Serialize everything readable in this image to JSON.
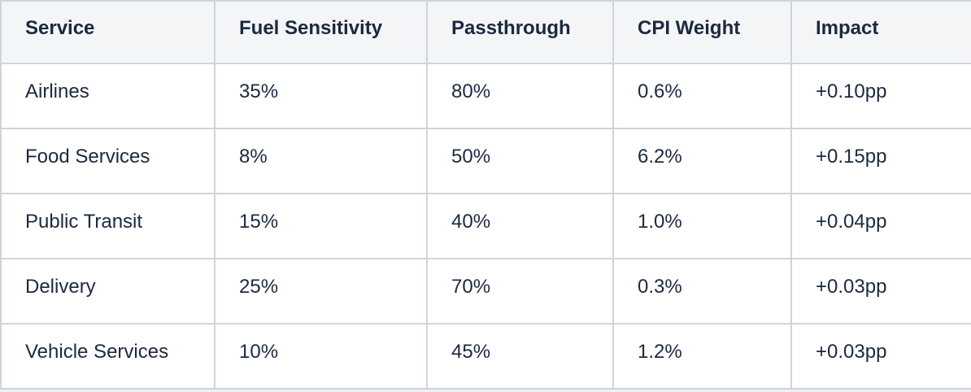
{
  "chart_data": {
    "type": "table",
    "columns": [
      "Service",
      "Fuel Sensitivity",
      "Passthrough",
      "CPI Weight",
      "Impact"
    ],
    "rows": [
      [
        "Airlines",
        "35%",
        "80%",
        "0.6%",
        "+0.10pp"
      ],
      [
        "Food Services",
        "8%",
        "50%",
        "6.2%",
        "+0.15pp"
      ],
      [
        "Public Transit",
        "15%",
        "40%",
        "1.0%",
        "+0.04pp"
      ],
      [
        "Delivery",
        "25%",
        "70%",
        "0.3%",
        "+0.03pp"
      ],
      [
        "Vehicle Services",
        "10%",
        "45%",
        "1.2%",
        "+0.03pp"
      ]
    ]
  },
  "colors": {
    "header_bg": "#f4f5f7",
    "row_bg": "#ffffff",
    "border": "#ced4de",
    "text": "#1b2940",
    "page_bg": "#edeff2"
  }
}
